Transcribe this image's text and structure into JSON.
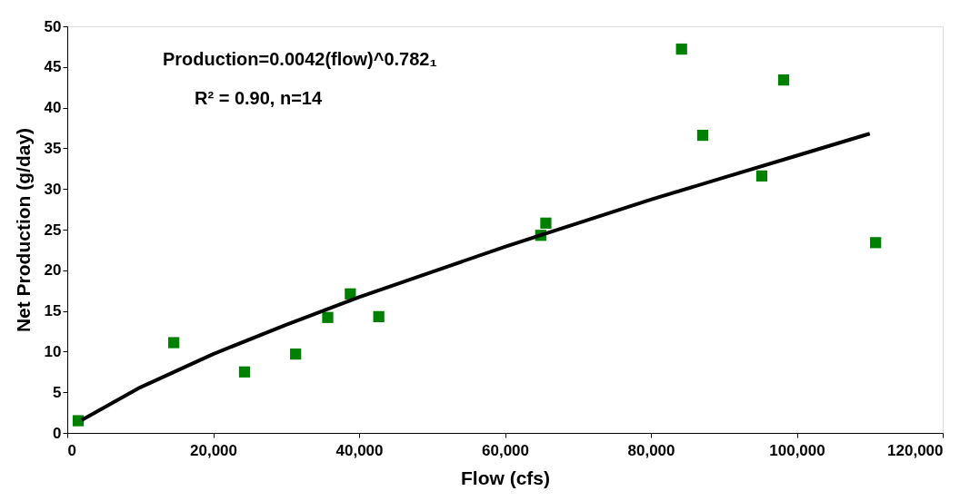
{
  "chart_data": {
    "type": "scatter",
    "xlabel": "Flow (cfs)",
    "ylabel": "Net Production (g/day)",
    "annotations": [
      "Production=0.0042(flow)^0.782₁",
      "R² = 0.90, n=14"
    ],
    "xlim": [
      0,
      120000
    ],
    "xticks": [
      {
        "value": 0,
        "label": "0"
      },
      {
        "value": 20000,
        "label": "20,000"
      },
      {
        "value": 40000,
        "label": "40,000"
      },
      {
        "value": 60000,
        "label": "60,000"
      },
      {
        "value": 80000,
        "label": "80,000"
      },
      {
        "value": 100000,
        "label": "100,000"
      },
      {
        "value": 120000,
        "label": "120,000"
      }
    ],
    "ylim": [
      0,
      50
    ],
    "yticks": [
      0,
      5,
      10,
      15,
      20,
      25,
      30,
      35,
      40,
      45,
      50
    ],
    "grid": false,
    "series": [
      {
        "marker": "square",
        "color": "#008000",
        "x": [
          1500,
          14600,
          24300,
          31300,
          35700,
          38800,
          42700,
          64900,
          65600,
          84200,
          87100,
          95200,
          98200,
          110800
        ],
        "values": [
          1.5,
          11.1,
          7.5,
          9.7,
          14.2,
          17.1,
          14.3,
          24.3,
          25.8,
          47.2,
          36.6,
          31.6,
          43.4,
          23.4
        ]
      },
      {
        "type": "line",
        "line_style": "solid",
        "color": "#000000",
        "x": [
          2000,
          10000,
          20000,
          30000,
          40000,
          50000,
          60000,
          70000,
          80000,
          90000,
          100000,
          110000
        ],
        "values": [
          1.6,
          5.6,
          9.7,
          13.3,
          16.7,
          19.8,
          22.9,
          25.8,
          28.7,
          31.4,
          34.1,
          36.8
        ]
      }
    ]
  }
}
